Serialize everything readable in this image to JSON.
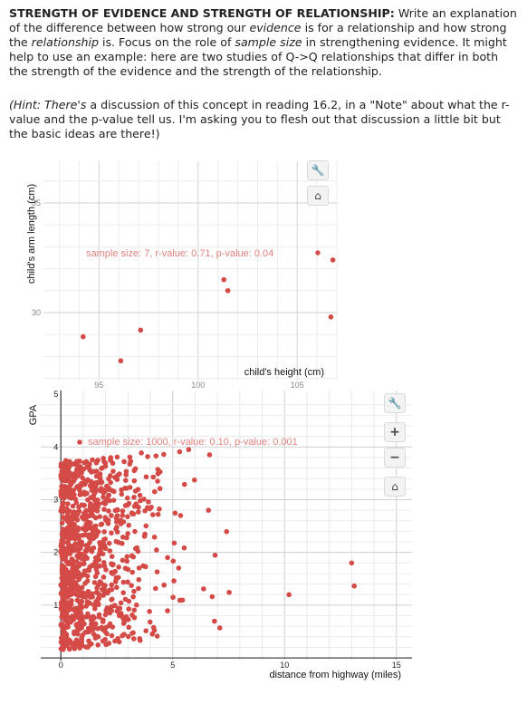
{
  "question": {
    "heading": "STRENGTH OF EVIDENCE AND STRENGTH OF RELATIONSHIP:",
    "p1": " Write an explanation of the difference between how strong our ",
    "evidence_word": "evidence",
    "p2": " is for a relationship and how strong the ",
    "relationship_word": "relationship",
    "p3": " is. Focus on the role of ",
    "sample_size_word": "sample size",
    "p4": " in strengthening evidence. It might help to use an example: here are two studies of Q->Q relationships that differ in both the strength of the evidence and the strength of the relationship.",
    "hint_italic": "(Hint: There's",
    "hint_rest": " a discussion of this concept in reading 16.2, in a \"Note\" about what the r-value and the p-value tell us. I'm asking you to flesh out that discussion a little bit but the basic ideas are there!)"
  },
  "toolbar_icons": {
    "wrench": "wrench-icon",
    "home": "home-icon",
    "zoom_in": "plus-icon",
    "zoom_out": "minus-icon"
  },
  "chart_data": [
    {
      "type": "scatter",
      "title": "sample size: 7, r-value: 0.71, p-value: 0.04",
      "xlabel": "child's height (cm)",
      "ylabel": "child's arm length (cm)",
      "xlim": [
        92.2,
        107.0
      ],
      "ylim": [
        26.9,
        36.9
      ],
      "x_ticks": [
        "95",
        "100",
        "105"
      ],
      "y_ticks": [
        "30",
        "35"
      ],
      "point_color": "#d44a47",
      "points": [
        [
          94.2,
          28.9
        ],
        [
          96.1,
          27.8
        ],
        [
          97.1,
          29.2
        ],
        [
          101.3,
          31.5
        ],
        [
          101.5,
          31.0
        ],
        [
          106.7,
          29.8
        ],
        [
          106.8,
          32.4
        ]
      ]
    },
    {
      "type": "scatter",
      "title": "sample size: 1000, r-value: 0.10, p-value: 0.001",
      "xlabel": "distance from highway (miles)",
      "ylabel": "GPA",
      "xlim": [
        -0.9,
        15.7
      ],
      "ylim": [
        -0.05,
        5.07
      ],
      "x_ticks": [
        "0",
        "5",
        "10",
        "15"
      ],
      "y_ticks": [
        "1",
        "2",
        "3",
        "4",
        "5"
      ],
      "point_color": "#d44a47",
      "sample_size": 1000
    }
  ]
}
